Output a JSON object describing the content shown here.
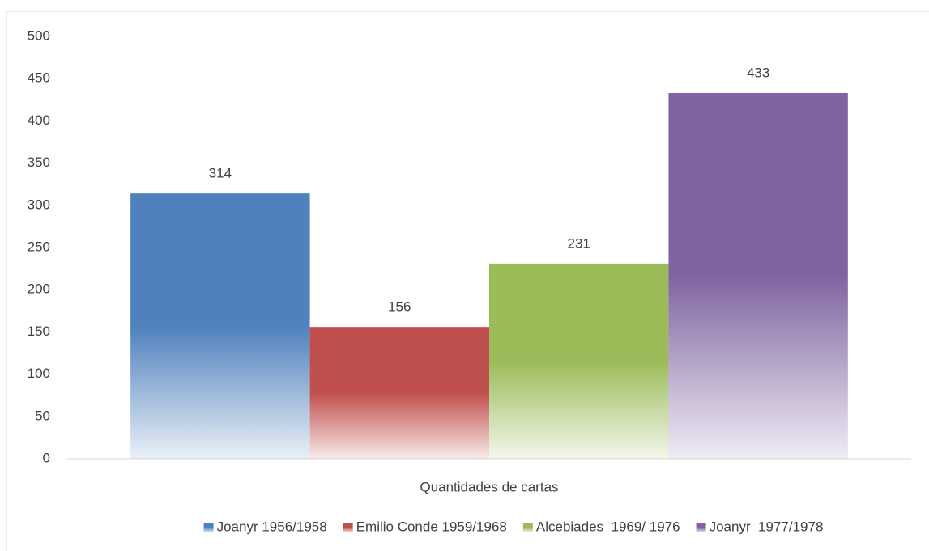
{
  "chart_data": {
    "type": "bar",
    "categories": [
      "Quantidades de cartas"
    ],
    "series": [
      {
        "name": "Joanyr 1956/1958",
        "color": "#4f81bd",
        "values": [
          314
        ]
      },
      {
        "name": "Emilio Conde 1959/1968",
        "color": "#c0504d",
        "values": [
          156
        ]
      },
      {
        "name": "Alcebiades  1969/ 1976",
        "color": "#9bbb59",
        "values": [
          231
        ]
      },
      {
        "name": "Joanyr  1977/1978",
        "color": "#8064a2",
        "values": [
          433
        ]
      }
    ],
    "ylim": [
      0,
      500
    ],
    "yticks": [
      0,
      50,
      100,
      150,
      200,
      250,
      300,
      350,
      400,
      450,
      500
    ],
    "grid": false,
    "legend": "bottom"
  }
}
